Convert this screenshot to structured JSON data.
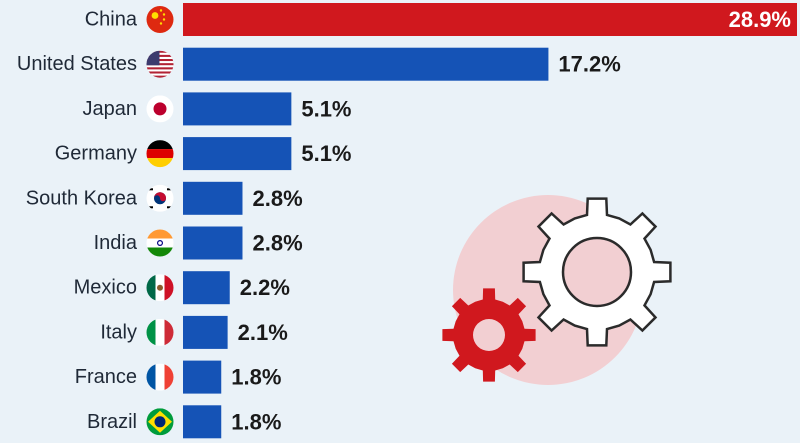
{
  "colors": {
    "background": "#eaf2f8",
    "highlight_bar": "#d0181e",
    "bar": "#1553b6",
    "label_text": "#1f2937",
    "value_text": "#1a1a1a",
    "value_text_inside": "#ffffff",
    "decor_circle": "#f2cfd2",
    "gear_red": "#d0181e",
    "gear_white": "#ffffff",
    "gear_outline": "#2b2b2b"
  },
  "chart_data": {
    "type": "bar",
    "orientation": "horizontal",
    "categories": [
      "China",
      "United States",
      "Japan",
      "Germany",
      "South Korea",
      "India",
      "Mexico",
      "Italy",
      "France",
      "Brazil"
    ],
    "values": [
      28.9,
      17.2,
      5.1,
      5.1,
      2.8,
      2.8,
      2.2,
      2.1,
      1.8,
      1.8
    ],
    "value_labels": [
      "28.9%",
      "17.2%",
      "5.1%",
      "5.1%",
      "2.8%",
      "2.8%",
      "2.2%",
      "2.1%",
      "1.8%",
      "1.8%"
    ],
    "flag_icons": [
      "china-flag-icon",
      "united-states-flag-icon",
      "japan-flag-icon",
      "germany-flag-icon",
      "south-korea-flag-icon",
      "india-flag-icon",
      "mexico-flag-icon",
      "italy-flag-icon",
      "france-flag-icon",
      "brazil-flag-icon"
    ],
    "highlight": "China",
    "xlim": [
      0,
      28.9
    ],
    "grid": false,
    "decoration": "gears-icon"
  }
}
